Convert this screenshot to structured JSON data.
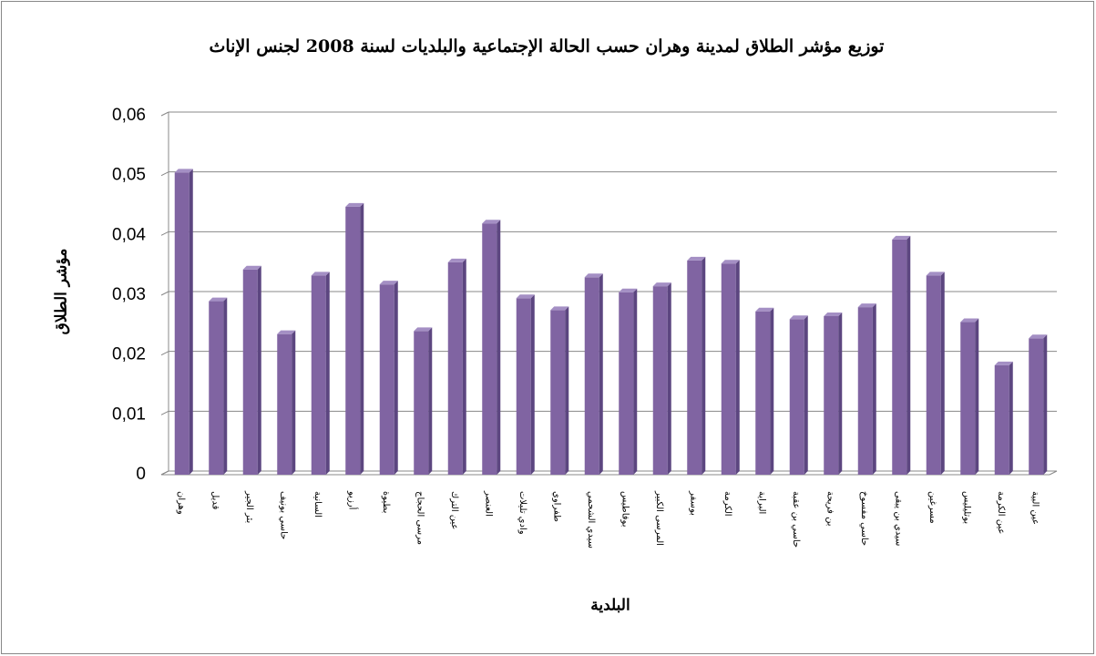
{
  "chart_data": {
    "type": "bar",
    "title": "توزيع مؤشر الطلاق لمدينة وهران حسب الحالة الإجتماعية والبلديات لسنة 2008 لجنس الإناث",
    "x_label": "البلدية",
    "y_label": "مؤشر الطلاق",
    "categories": [
      "وهران",
      "قديل",
      "بئر الجير",
      "حاسي بونيف",
      "السانية",
      "أرزيو",
      "بطيوة",
      "مرسى الحجاج",
      "عين الترك",
      "العنصر",
      "وادي تليلات",
      "طفراوي",
      "سيدي الشحمي",
      "بوفاطيس",
      "المرسى الكبير",
      "بوسفر",
      "الكرمة",
      "البراية",
      "حاسي بن عقبة",
      "بن فريحة",
      "حاسي مفسوخ",
      "سيدي بن يبقى",
      "مسرغين",
      "بوتليليس",
      "عين الكرمة",
      "عين البية"
    ],
    "values": [
      0.0505,
      0.029,
      0.0343,
      0.0235,
      0.0333,
      0.0448,
      0.0318,
      0.024,
      0.0355,
      0.042,
      0.0295,
      0.0275,
      0.033,
      0.0305,
      0.0315,
      0.0358,
      0.0353,
      0.0273,
      0.026,
      0.0265,
      0.028,
      0.0393,
      0.0333,
      0.0255,
      0.0183,
      0.0228
    ],
    "color": "#8064a2",
    "ylim": [
      0,
      0.06
    ],
    "yticks": [
      0,
      {
        "value": 0.01,
        "label": "0,01"
      },
      {
        "value": 0.02,
        "label": "0,02"
      },
      {
        "value": 0.03,
        "label": "0,03"
      },
      {
        "value": 0.04,
        "label": "0,04"
      },
      {
        "value": 0.05,
        "label": "0,05"
      },
      {
        "value": 0.06,
        "label": "0,06"
      }
    ],
    "grid": true
  }
}
